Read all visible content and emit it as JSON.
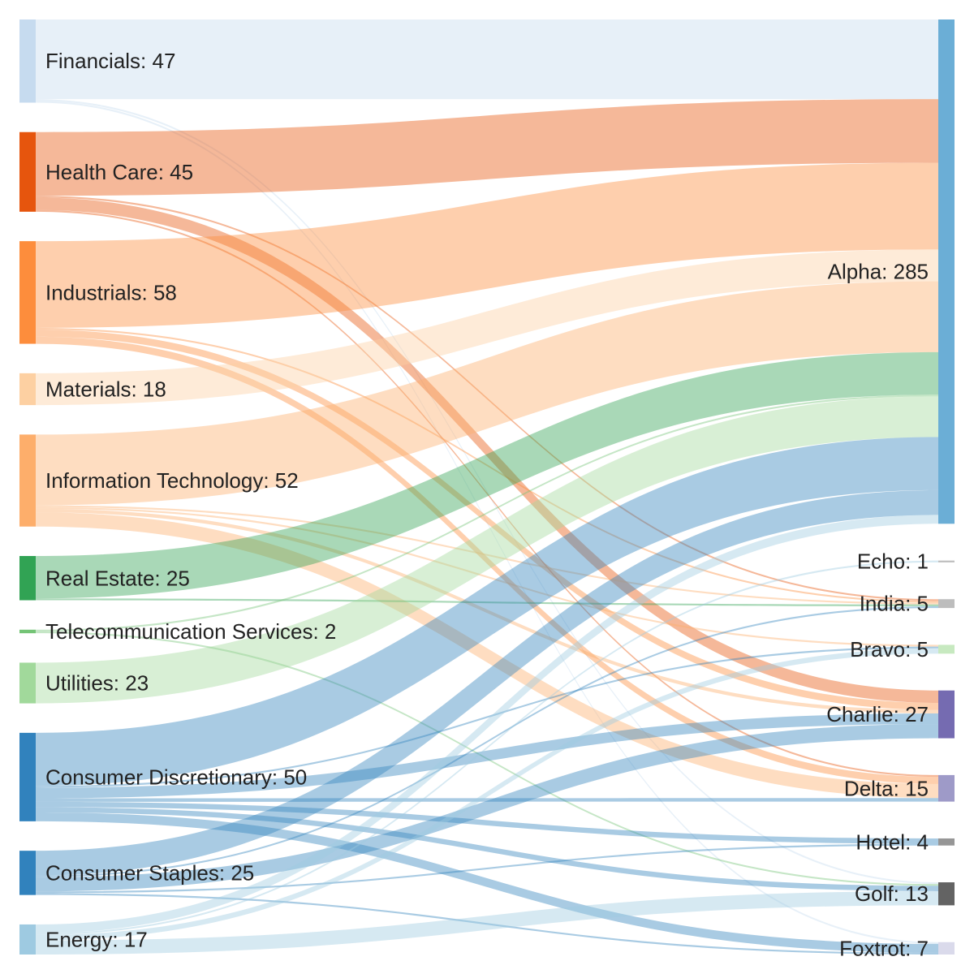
{
  "chart_data": {
    "type": "sankey",
    "title": "",
    "sources": [
      {
        "id": "fin",
        "name": "Financials",
        "value": 47,
        "color": "#c6dbef"
      },
      {
        "id": "hc",
        "name": "Health Care",
        "value": 45,
        "color": "#e6550d"
      },
      {
        "id": "ind",
        "name": "Industrials",
        "value": 58,
        "color": "#fd8d3c"
      },
      {
        "id": "mat",
        "name": "Materials",
        "value": 18,
        "color": "#fdd0a2"
      },
      {
        "id": "it",
        "name": "Information Technology",
        "value": 52,
        "color": "#fdae6b"
      },
      {
        "id": "re",
        "name": "Real Estate",
        "value": 25,
        "color": "#31a354"
      },
      {
        "id": "tel",
        "name": "Telecommunication Services",
        "value": 2,
        "color": "#74c476"
      },
      {
        "id": "util",
        "name": "Utilities",
        "value": 23,
        "color": "#a1d99b"
      },
      {
        "id": "cd",
        "name": "Consumer Discretionary",
        "value": 50,
        "color": "#3182bd"
      },
      {
        "id": "cs",
        "name": "Consumer Staples",
        "value": 25,
        "color": "#3182bd"
      },
      {
        "id": "en",
        "name": "Energy",
        "value": 17,
        "color": "#9ecae1"
      }
    ],
    "targets": [
      {
        "id": "alpha",
        "name": "Alpha",
        "value": 285,
        "color": "#6baed6"
      },
      {
        "id": "echo",
        "name": "Echo",
        "value": 1,
        "color": "#bdbdbd"
      },
      {
        "id": "india",
        "name": "India",
        "value": 5,
        "color": "#bdbdbd"
      },
      {
        "id": "bravo",
        "name": "Bravo",
        "value": 5,
        "color": "#c7e9c0"
      },
      {
        "id": "charlie",
        "name": "Charlie",
        "value": 27,
        "color": "#756bb1"
      },
      {
        "id": "delta",
        "name": "Delta",
        "value": 15,
        "color": "#9e9ac8"
      },
      {
        "id": "hotel",
        "name": "Hotel",
        "value": 4,
        "color": "#969696"
      },
      {
        "id": "golf",
        "name": "Golf",
        "value": 13,
        "color": "#636363"
      },
      {
        "id": "foxtrot",
        "name": "Foxtrot",
        "value": 7,
        "color": "#dadaeb"
      }
    ],
    "links": [
      {
        "source": "fin",
        "target": "alpha",
        "value": 45
      },
      {
        "source": "fin",
        "target": "golf",
        "value": 1
      },
      {
        "source": "fin",
        "target": "foxtrot",
        "value": 1
      },
      {
        "source": "hc",
        "target": "alpha",
        "value": 36
      },
      {
        "source": "hc",
        "target": "india",
        "value": 1
      },
      {
        "source": "hc",
        "target": "charlie",
        "value": 7
      },
      {
        "source": "hc",
        "target": "delta",
        "value": 1
      },
      {
        "source": "ind",
        "target": "alpha",
        "value": 49
      },
      {
        "source": "ind",
        "target": "india",
        "value": 1
      },
      {
        "source": "ind",
        "target": "charlie",
        "value": 4
      },
      {
        "source": "ind",
        "target": "delta",
        "value": 4
      },
      {
        "source": "mat",
        "target": "alpha",
        "value": 18
      },
      {
        "source": "it",
        "target": "alpha",
        "value": 40
      },
      {
        "source": "it",
        "target": "india",
        "value": 1
      },
      {
        "source": "it",
        "target": "bravo",
        "value": 1
      },
      {
        "source": "it",
        "target": "charlie",
        "value": 2
      },
      {
        "source": "it",
        "target": "delta",
        "value": 8
      },
      {
        "source": "re",
        "target": "alpha",
        "value": 24
      },
      {
        "source": "re",
        "target": "india",
        "value": 1
      },
      {
        "source": "tel",
        "target": "alpha",
        "value": 1
      },
      {
        "source": "tel",
        "target": "golf",
        "value": 1
      },
      {
        "source": "util",
        "target": "alpha",
        "value": 23
      },
      {
        "source": "cd",
        "target": "alpha",
        "value": 30
      },
      {
        "source": "cd",
        "target": "bravo",
        "value": 1
      },
      {
        "source": "cd",
        "target": "charlie",
        "value": 6
      },
      {
        "source": "cd",
        "target": "delta",
        "value": 2
      },
      {
        "source": "cd",
        "target": "hotel",
        "value": 3
      },
      {
        "source": "cd",
        "target": "golf",
        "value": 3
      },
      {
        "source": "cd",
        "target": "foxtrot",
        "value": 5
      },
      {
        "source": "cs",
        "target": "alpha",
        "value": 14
      },
      {
        "source": "cs",
        "target": "india",
        "value": 1
      },
      {
        "source": "cs",
        "target": "charlie",
        "value": 8
      },
      {
        "source": "cs",
        "target": "hotel",
        "value": 1
      },
      {
        "source": "cs",
        "target": "foxtrot",
        "value": 1
      },
      {
        "source": "en",
        "target": "alpha",
        "value": 5
      },
      {
        "source": "en",
        "target": "echo",
        "value": 1
      },
      {
        "source": "en",
        "target": "bravo",
        "value": 3
      },
      {
        "source": "en",
        "target": "golf",
        "value": 8
      }
    ]
  }
}
